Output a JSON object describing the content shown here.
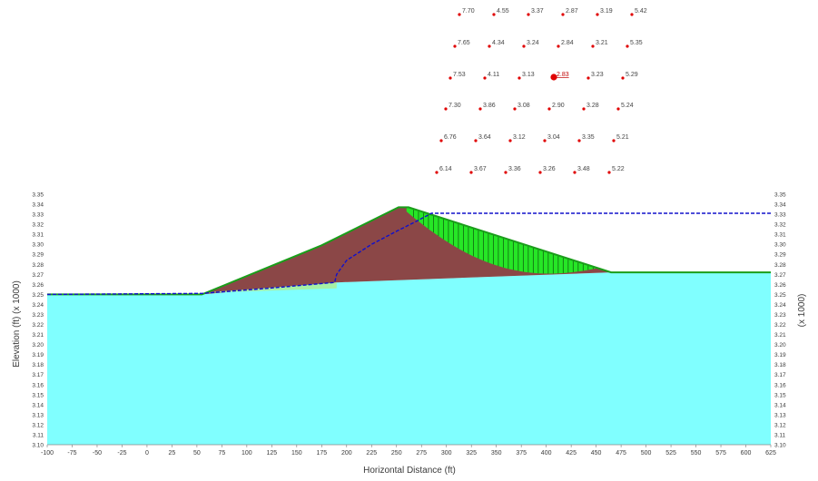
{
  "labels": {
    "x_axis": "Horizontal Distance (ft)",
    "y_axis_left": "Elevation (ft)  (x  1000)",
    "y_axis_right": "(x  1000)"
  },
  "x_ticks": [
    "-100",
    "-75",
    "-50",
    "-25",
    "0",
    "25",
    "50",
    "75",
    "100",
    "125",
    "150",
    "175",
    "200",
    "225",
    "250",
    "275",
    "300",
    "325",
    "350",
    "375",
    "400",
    "425",
    "450",
    "475",
    "500",
    "525",
    "550",
    "575",
    "600",
    "625"
  ],
  "y_ticks": [
    "3.35",
    "3.34",
    "3.33",
    "3.32",
    "3.31",
    "3.30",
    "3.29",
    "3.28",
    "3.27",
    "3.26",
    "3.25",
    "3.24",
    "3.23",
    "3.22",
    "3.21",
    "3.20",
    "3.19",
    "3.18",
    "3.17",
    "3.16",
    "3.15",
    "3.14",
    "3.13",
    "3.12",
    "3.11",
    "3.10"
  ],
  "grid_values": [
    [
      "7.70",
      "4.55",
      "3.37",
      "2.87",
      "3.19",
      "5.42"
    ],
    [
      "7.65",
      "4.34",
      "3.24",
      "2.84",
      "3.21",
      "5.35"
    ],
    [
      "7.53",
      "4.11",
      "3.13",
      "2.83",
      "3.23",
      "5.29"
    ],
    [
      "7.30",
      "3.86",
      "3.08",
      "2.90",
      "3.28",
      "5.24"
    ],
    [
      "6.76",
      "3.64",
      "3.12",
      "3.04",
      "3.35",
      "5.21"
    ],
    [
      "6.14",
      "3.67",
      "3.36",
      "3.26",
      "3.48",
      "5.22"
    ]
  ],
  "critical": {
    "row": 2,
    "col": 3
  },
  "colors": {
    "foundation": "#80ffff",
    "embankment": "#8b4747",
    "slip_mass": "#26e626",
    "filter_drain": "#a6f0a6",
    "crest_outline": "#1a9e1a",
    "phreatic_line": "#1010cc",
    "grid_point": "#e00000",
    "axis_text": "#3a3a3a"
  }
}
